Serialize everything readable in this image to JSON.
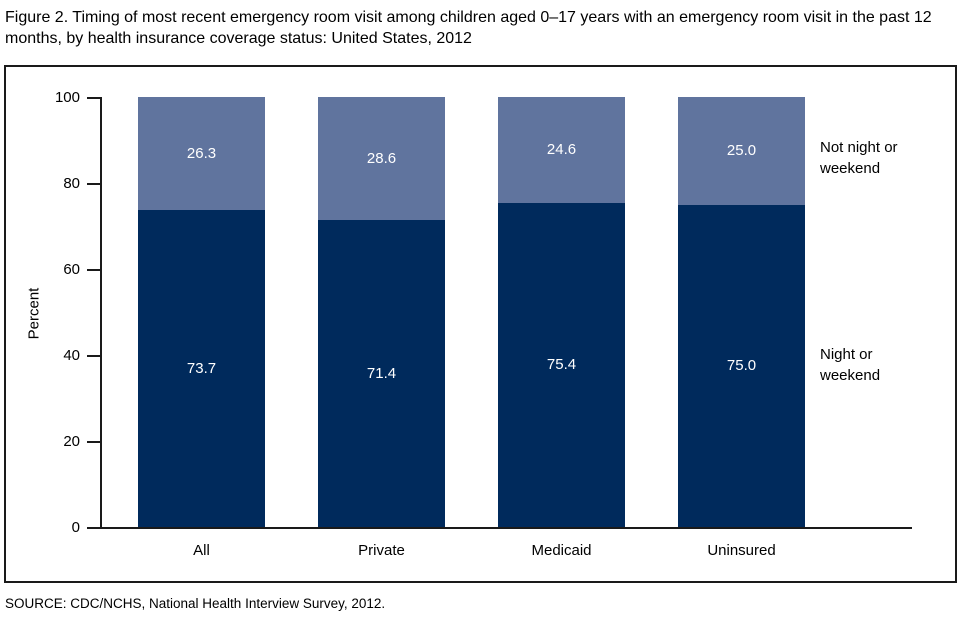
{
  "title": "Figure 2. Timing of most recent emergency room visit among children aged 0–17 years with an emergency room visit in the past 12 months, by health insurance coverage status: United States, 2012",
  "source": "SOURCE: CDC/NCHS, National Health Interview Survey, 2012.",
  "chart_data": {
    "type": "bar",
    "stacked": true,
    "title": "Timing of most recent emergency room visit among children aged 0–17 years with an emergency room visit in the past 12 months, by health insurance coverage status: United States, 2012",
    "categories": [
      "All",
      "Private",
      "Medicaid",
      "Uninsured"
    ],
    "series": [
      {
        "name": "Night or weekend",
        "color": "#002a5c",
        "values": [
          73.7,
          71.4,
          75.4,
          75.0
        ]
      },
      {
        "name": "Not night or weekend",
        "color": "#60749e",
        "values": [
          26.3,
          28.6,
          24.6,
          25.0
        ]
      }
    ],
    "xlabel": "",
    "ylabel": "Percent",
    "ylim": [
      0,
      100
    ],
    "yticks": [
      0,
      20,
      40,
      60,
      80,
      100
    ],
    "value_label_color": "#ffffff",
    "legend_position": "right",
    "grid": false
  }
}
